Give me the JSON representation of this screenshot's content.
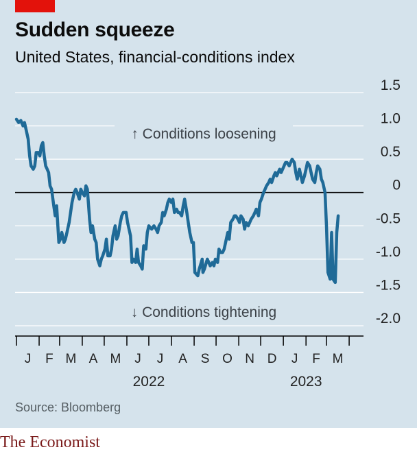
{
  "header": {
    "title": "Sudden squeeze",
    "subtitle": "United States, financial-conditions index"
  },
  "footer": {
    "source": "Source: Bloomberg",
    "brand": "The Economist"
  },
  "colors": {
    "background": "#d5e3ec",
    "line": "#1f6a97",
    "grid": "#ffffff",
    "zero_line": "#000000",
    "accent": "#e3120b"
  },
  "chart_data": {
    "type": "line",
    "title": "Sudden squeeze",
    "subtitle": "United States, financial-conditions index",
    "ylim": [
      -2.0,
      1.5
    ],
    "yticks": [
      1.5,
      1.0,
      0.5,
      0,
      -0.5,
      -1.0,
      -1.5,
      -2.0
    ],
    "ytick_labels": [
      "1.5",
      "1.0",
      "0.5",
      "0",
      "-0.5",
      "-1.0",
      "-1.5",
      "-2.0"
    ],
    "xlim": [
      "2022-01-01",
      "2023-04-30"
    ],
    "month_ticks": [
      "2022-01-01",
      "2022-02-01",
      "2022-03-01",
      "2022-04-01",
      "2022-05-01",
      "2022-06-01",
      "2022-07-01",
      "2022-08-01",
      "2022-09-01",
      "2022-10-01",
      "2022-11-01",
      "2022-12-01",
      "2023-01-01",
      "2023-02-01",
      "2023-03-01",
      "2023-04-01"
    ],
    "month_labels": [
      "J",
      "F",
      "M",
      "A",
      "M",
      "J",
      "J",
      "A",
      "S",
      "O",
      "N",
      "D",
      "J",
      "F",
      "M"
    ],
    "year_labels": [
      {
        "label": "2022",
        "date": "2022-07-01"
      },
      {
        "label": "2023",
        "date": "2023-02-01"
      }
    ],
    "grid": true,
    "annotations": [
      "↑ Conditions loosening",
      "↓ Conditions tightening"
    ],
    "series": [
      {
        "points": [
          [
            "2022-01-01",
            1.1
          ],
          [
            "2022-01-04",
            1.05
          ],
          [
            "2022-01-07",
            1.08
          ],
          [
            "2022-01-10",
            1.0
          ],
          [
            "2022-01-12",
            1.05
          ],
          [
            "2022-01-14",
            0.95
          ],
          [
            "2022-01-17",
            0.8
          ],
          [
            "2022-01-19",
            0.55
          ],
          [
            "2022-01-21",
            0.4
          ],
          [
            "2022-01-24",
            0.35
          ],
          [
            "2022-01-26",
            0.4
          ],
          [
            "2022-01-28",
            0.6
          ],
          [
            "2022-01-31",
            0.6
          ],
          [
            "2022-02-02",
            0.55
          ],
          [
            "2022-02-04",
            0.7
          ],
          [
            "2022-02-06",
            0.75
          ],
          [
            "2022-02-08",
            0.55
          ],
          [
            "2022-02-10",
            0.4
          ],
          [
            "2022-02-12",
            0.35
          ],
          [
            "2022-02-14",
            0.3
          ],
          [
            "2022-02-16",
            0.1
          ],
          [
            "2022-02-18",
            0.05
          ],
          [
            "2022-02-21",
            -0.2
          ],
          [
            "2022-02-23",
            -0.35
          ],
          [
            "2022-02-25",
            -0.2
          ],
          [
            "2022-02-28",
            -0.75
          ],
          [
            "2022-03-02",
            -0.7
          ],
          [
            "2022-03-04",
            -0.6
          ],
          [
            "2022-03-07",
            -0.75
          ],
          [
            "2022-03-09",
            -0.7
          ],
          [
            "2022-03-11",
            -0.6
          ],
          [
            "2022-03-14",
            -0.45
          ],
          [
            "2022-03-16",
            -0.3
          ],
          [
            "2022-03-18",
            -0.15
          ],
          [
            "2022-03-21",
            0.0
          ],
          [
            "2022-03-23",
            0.05
          ],
          [
            "2022-03-25",
            0.0
          ],
          [
            "2022-03-28",
            -0.1
          ],
          [
            "2022-03-30",
            0.05
          ],
          [
            "2022-04-01",
            0.0
          ],
          [
            "2022-04-04",
            -0.05
          ],
          [
            "2022-04-06",
            0.1
          ],
          [
            "2022-04-08",
            0.05
          ],
          [
            "2022-04-11",
            -0.4
          ],
          [
            "2022-04-13",
            -0.6
          ],
          [
            "2022-04-15",
            -0.5
          ],
          [
            "2022-04-18",
            -0.7
          ],
          [
            "2022-04-20",
            -0.75
          ],
          [
            "2022-04-22",
            -1.0
          ],
          [
            "2022-04-25",
            -1.1
          ],
          [
            "2022-04-27",
            -1.0
          ],
          [
            "2022-04-29",
            -0.95
          ],
          [
            "2022-05-02",
            -0.85
          ],
          [
            "2022-05-04",
            -0.7
          ],
          [
            "2022-05-06",
            -0.95
          ],
          [
            "2022-05-09",
            -0.95
          ],
          [
            "2022-05-11",
            -0.85
          ],
          [
            "2022-05-13",
            -0.65
          ],
          [
            "2022-05-16",
            -0.5
          ],
          [
            "2022-05-18",
            -0.7
          ],
          [
            "2022-05-20",
            -0.65
          ],
          [
            "2022-05-23",
            -0.45
          ],
          [
            "2022-05-25",
            -0.35
          ],
          [
            "2022-05-27",
            -0.3
          ],
          [
            "2022-05-31",
            -0.3
          ],
          [
            "2022-06-02",
            -0.45
          ],
          [
            "2022-06-06",
            -0.65
          ],
          [
            "2022-06-08",
            -1.05
          ],
          [
            "2022-06-10",
            -1.0
          ],
          [
            "2022-06-13",
            -1.05
          ],
          [
            "2022-06-15",
            -0.85
          ],
          [
            "2022-06-17",
            -1.05
          ],
          [
            "2022-06-20",
            -1.1
          ],
          [
            "2022-06-22",
            -1.15
          ],
          [
            "2022-06-24",
            -0.8
          ],
          [
            "2022-06-27",
            -0.85
          ],
          [
            "2022-06-29",
            -0.6
          ],
          [
            "2022-07-01",
            -0.5
          ],
          [
            "2022-07-05",
            -0.55
          ],
          [
            "2022-07-08",
            -0.5
          ],
          [
            "2022-07-11",
            -0.55
          ],
          [
            "2022-07-13",
            -0.6
          ],
          [
            "2022-07-15",
            -0.5
          ],
          [
            "2022-07-18",
            -0.45
          ],
          [
            "2022-07-20",
            -0.3
          ],
          [
            "2022-07-22",
            -0.35
          ],
          [
            "2022-07-25",
            -0.25
          ],
          [
            "2022-07-27",
            -0.15
          ],
          [
            "2022-07-29",
            -0.1
          ],
          [
            "2022-08-01",
            -0.15
          ],
          [
            "2022-08-03",
            -0.1
          ],
          [
            "2022-08-05",
            -0.3
          ],
          [
            "2022-08-08",
            -0.25
          ],
          [
            "2022-08-10",
            -0.3
          ],
          [
            "2022-08-12",
            -0.3
          ],
          [
            "2022-08-15",
            -0.35
          ],
          [
            "2022-08-17",
            -0.2
          ],
          [
            "2022-08-19",
            -0.1
          ],
          [
            "2022-08-22",
            -0.3
          ],
          [
            "2022-08-24",
            -0.45
          ],
          [
            "2022-08-26",
            -0.6
          ],
          [
            "2022-08-29",
            -0.75
          ],
          [
            "2022-08-31",
            -0.75
          ],
          [
            "2022-09-02",
            -1.2
          ],
          [
            "2022-09-06",
            -1.25
          ],
          [
            "2022-09-08",
            -1.15
          ],
          [
            "2022-09-12",
            -1.0
          ],
          [
            "2022-09-13",
            -1.2
          ],
          [
            "2022-09-15",
            -1.15
          ],
          [
            "2022-09-19",
            -1.0
          ],
          [
            "2022-09-21",
            -1.05
          ],
          [
            "2022-09-23",
            -1.1
          ],
          [
            "2022-09-26",
            -1.05
          ],
          [
            "2022-09-28",
            -1.1
          ],
          [
            "2022-09-30",
            -1.0
          ],
          [
            "2022-10-03",
            -1.05
          ],
          [
            "2022-10-05",
            -0.85
          ],
          [
            "2022-10-07",
            -0.9
          ],
          [
            "2022-10-10",
            -0.9
          ],
          [
            "2022-10-12",
            -0.85
          ],
          [
            "2022-10-14",
            -0.75
          ],
          [
            "2022-10-17",
            -0.6
          ],
          [
            "2022-10-19",
            -0.7
          ],
          [
            "2022-10-21",
            -0.45
          ],
          [
            "2022-10-24",
            -0.4
          ],
          [
            "2022-10-26",
            -0.35
          ],
          [
            "2022-10-28",
            -0.35
          ],
          [
            "2022-10-31",
            -0.4
          ],
          [
            "2022-11-02",
            -0.45
          ],
          [
            "2022-11-04",
            -0.35
          ],
          [
            "2022-11-07",
            -0.4
          ],
          [
            "2022-11-09",
            -0.55
          ],
          [
            "2022-11-11",
            -0.45
          ],
          [
            "2022-11-14",
            -0.5
          ],
          [
            "2022-11-16",
            -0.45
          ],
          [
            "2022-11-18",
            -0.4
          ],
          [
            "2022-11-21",
            -0.35
          ],
          [
            "2022-11-23",
            -0.3
          ],
          [
            "2022-11-25",
            -0.25
          ],
          [
            "2022-11-28",
            -0.35
          ],
          [
            "2022-11-30",
            -0.15
          ],
          [
            "2022-12-02",
            -0.1
          ],
          [
            "2022-12-05",
            0.0
          ],
          [
            "2022-12-07",
            0.05
          ],
          [
            "2022-12-09",
            0.1
          ],
          [
            "2022-12-12",
            0.15
          ],
          [
            "2022-12-14",
            0.2
          ],
          [
            "2022-12-16",
            0.15
          ],
          [
            "2022-12-19",
            0.25
          ],
          [
            "2022-12-21",
            0.3
          ],
          [
            "2022-12-23",
            0.25
          ],
          [
            "2022-12-27",
            0.35
          ],
          [
            "2022-12-29",
            0.3
          ],
          [
            "2023-01-02",
            0.4
          ],
          [
            "2023-01-04",
            0.45
          ],
          [
            "2023-01-06",
            0.45
          ],
          [
            "2023-01-09",
            0.4
          ],
          [
            "2023-01-11",
            0.45
          ],
          [
            "2023-01-13",
            0.5
          ],
          [
            "2023-01-16",
            0.45
          ],
          [
            "2023-01-18",
            0.3
          ],
          [
            "2023-01-20",
            0.2
          ],
          [
            "2023-01-23",
            0.35
          ],
          [
            "2023-01-25",
            0.25
          ],
          [
            "2023-01-27",
            0.15
          ],
          [
            "2023-01-30",
            0.25
          ],
          [
            "2023-02-01",
            0.35
          ],
          [
            "2023-02-03",
            0.45
          ],
          [
            "2023-02-06",
            0.4
          ],
          [
            "2023-02-08",
            0.3
          ],
          [
            "2023-02-10",
            0.2
          ],
          [
            "2023-02-13",
            0.15
          ],
          [
            "2023-02-15",
            0.3
          ],
          [
            "2023-02-17",
            0.4
          ],
          [
            "2023-02-20",
            0.35
          ],
          [
            "2023-02-22",
            0.2
          ],
          [
            "2023-02-24",
            0.15
          ],
          [
            "2023-02-27",
            0.0
          ],
          [
            "2023-03-01",
            -0.5
          ],
          [
            "2023-03-03",
            -1.2
          ],
          [
            "2023-03-06",
            -1.3
          ],
          [
            "2023-03-08",
            -0.6
          ],
          [
            "2023-03-10",
            -1.3
          ],
          [
            "2023-03-13",
            -1.35
          ],
          [
            "2023-03-15",
            -0.6
          ],
          [
            "2023-03-17",
            -0.35
          ]
        ]
      }
    ]
  }
}
